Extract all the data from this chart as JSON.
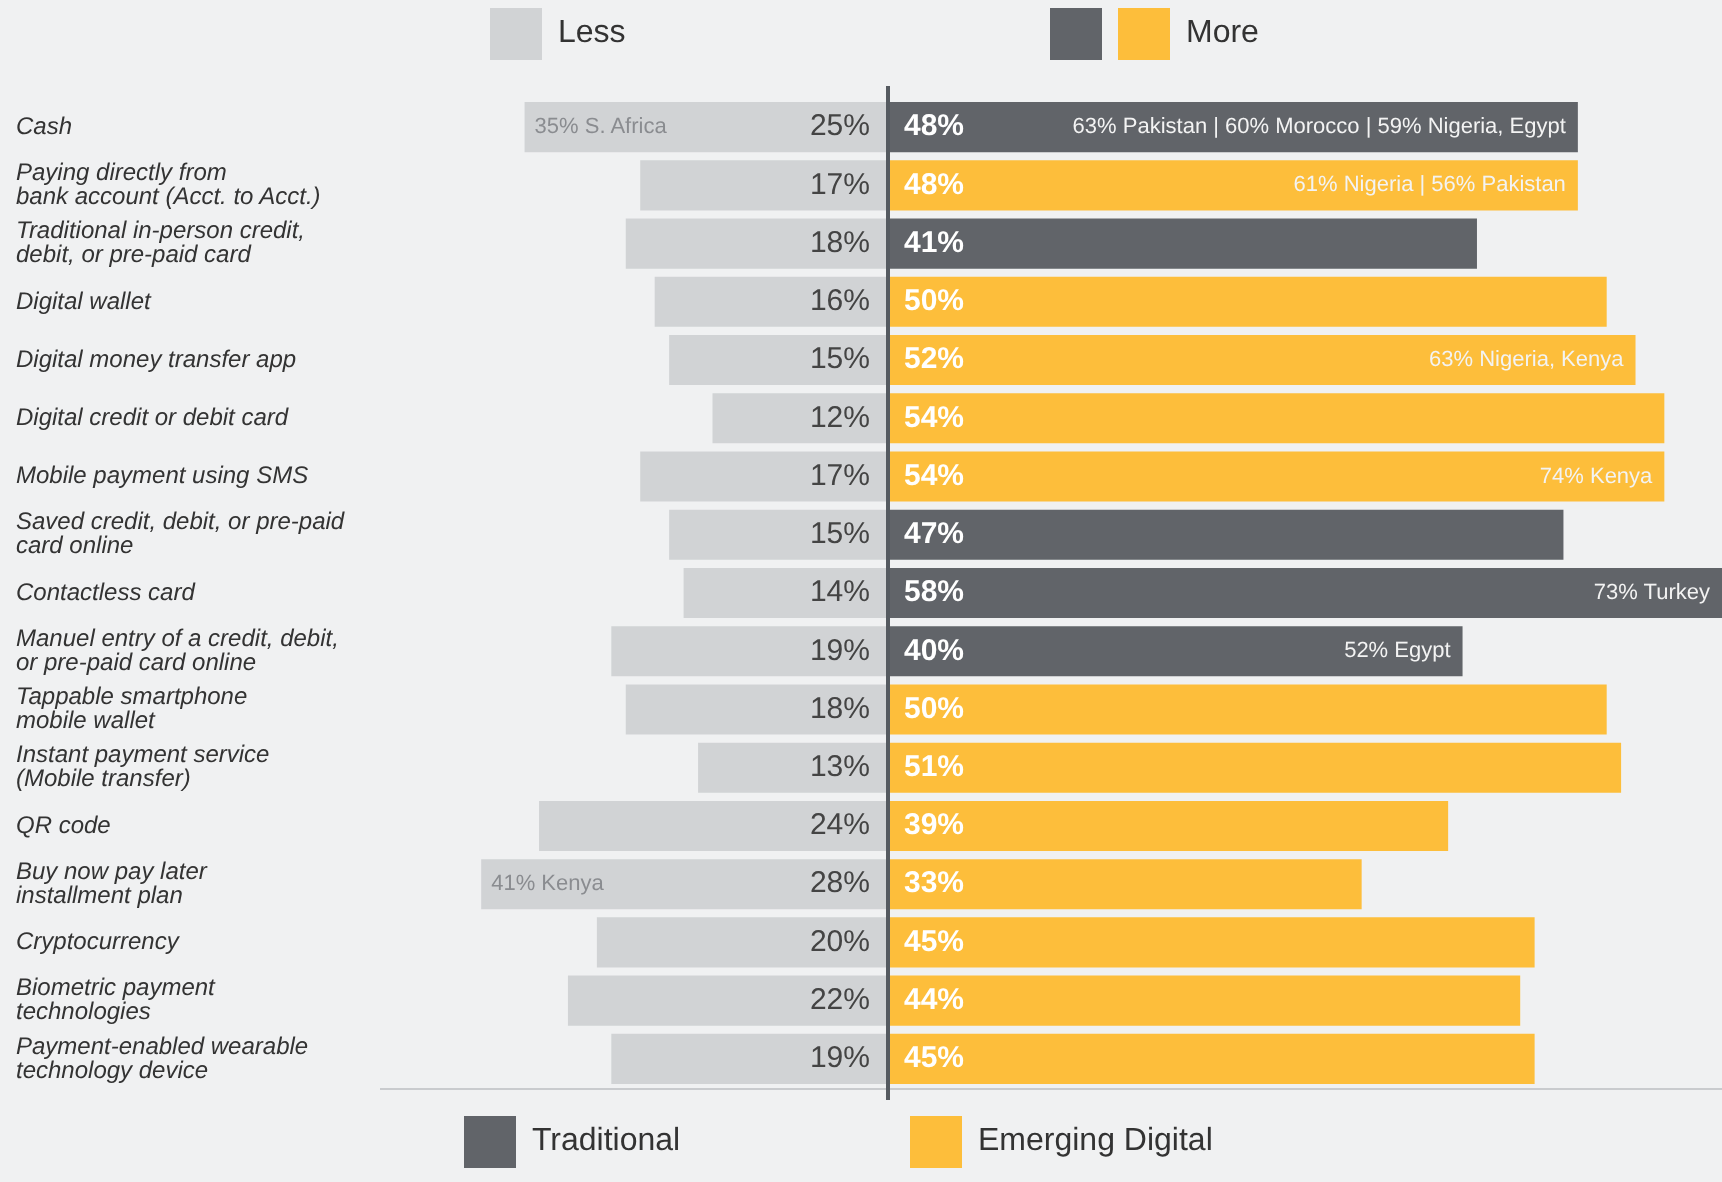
{
  "chart_data": [
    {
      "type": "bar",
      "orientation": "horizontal",
      "legend": "top",
      "tick_labels": "y",
      "xlim": [
        35,
        0
      ],
      "categories": [
        "Cash",
        "Paying directly from\nbank account (Acct. to Acct.)",
        "Traditional in-person credit,\ndebit, or pre-paid card",
        "Digital wallet",
        "Digital money transfer app",
        "Digital credit or debit card",
        "Mobile payment using SMS",
        "Saved credit, debit, or pre-paid\ncard online",
        "Contactless card",
        "Manuel entry of a credit, debit,\nor pre-paid card online",
        "Tappable smartphone\nmobile wallet",
        "Instant payment service\n(Mobile transfer)",
        "QR code",
        "Buy now pay later\ninstallment plan",
        "Cryptocurrency",
        "Biometric payment\ntechnologies",
        "Payment-enabled wearable\ntechnology device"
      ],
      "series": [
        {
          "name": "Less",
          "color": "#d1d3d5",
          "values": [
            25,
            17,
            18,
            16,
            15,
            12,
            17,
            15,
            14,
            19,
            18,
            13,
            24,
            28,
            20,
            22,
            19
          ],
          "value_labels": [
            "25%",
            "17%",
            "18%",
            "16%",
            "15%",
            "12%",
            "17%",
            "15%",
            "14%",
            "19%",
            "18%",
            "13%",
            "24%",
            "28%",
            "20%",
            "22%",
            "19%"
          ]
        }
      ],
      "annotations": [
        "35% S. Africa",
        "41% Kenya"
      ]
    },
    {
      "type": "bar",
      "orientation": "horizontal",
      "stacked": true,
      "legend": "bottom",
      "legend_title": "More",
      "tick_labels": false,
      "xlim": [
        0,
        58
      ],
      "categories": [
        null,
        null,
        null,
        null,
        null,
        null,
        null,
        null,
        null,
        null,
        null,
        null,
        null,
        null,
        null,
        null,
        null
      ],
      "series": [
        {
          "name": "Traditional",
          "color": "#616469",
          "values": [
            48,
            null,
            41,
            null,
            null,
            null,
            null,
            47,
            58,
            40,
            null,
            null,
            null,
            null,
            null,
            null,
            null
          ],
          "value_labels": [
            "48%",
            null,
            "41%",
            null,
            null,
            null,
            null,
            "47%",
            "58%",
            "40%",
            null,
            null,
            null,
            null,
            null,
            null,
            null
          ]
        },
        {
          "name": "Emerging Digital",
          "color": "#fdbe3b",
          "values": [
            null,
            48,
            null,
            50,
            52,
            54,
            54,
            null,
            null,
            null,
            50,
            51,
            39,
            33,
            45,
            44,
            45
          ],
          "value_labels": [
            null,
            "48%",
            null,
            "50%",
            "52%",
            "54%",
            "54%",
            null,
            null,
            null,
            "50%",
            "51%",
            "39%",
            "33%",
            "45%",
            "44%",
            "45%"
          ]
        }
      ],
      "annotations": [
        "63% Pakistan | 60% Morocco | 59% Nigeria, Egypt",
        "61% Nigeria | 56% Pakistan",
        "63% Nigeria, Kenya",
        "74% Kenya",
        "73% Turkey",
        "52% Egypt"
      ]
    }
  ]
}
